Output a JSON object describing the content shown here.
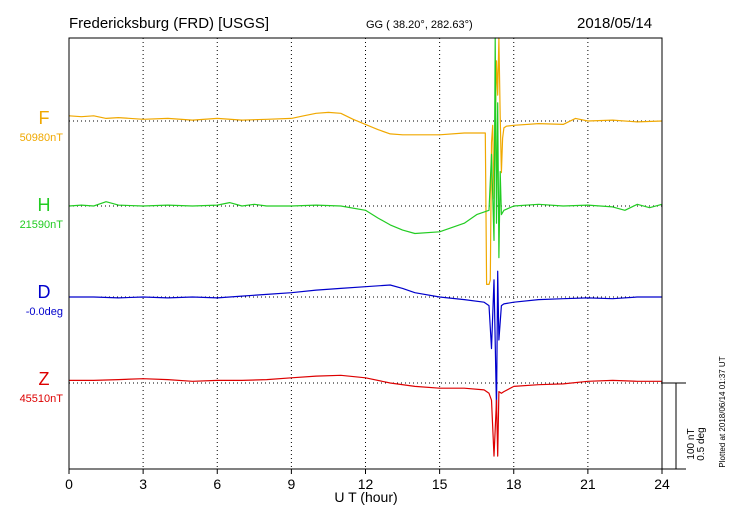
{
  "header": {
    "station": "Fredericksburg (FRD)  [USGS]",
    "coords": "GG ( 38.20°, 282.63°)",
    "date": "2018/05/14"
  },
  "footer": {
    "plotted": "Plotted at 2018/06/14 01:37 UT"
  },
  "chart_data": {
    "type": "line",
    "xlabel": "U T (hour)",
    "xlim": [
      0,
      24
    ],
    "xticks": [
      "0",
      "3",
      "6",
      "9",
      "12",
      "15",
      "18",
      "21",
      "24"
    ],
    "scale": {
      "field": "100 nT",
      "angle": "0.5 deg"
    },
    "series": [
      {
        "name": "F",
        "baseline": "50980nT",
        "color": "#f0a800",
        "x": [
          0,
          0.5,
          1,
          1.5,
          2,
          3,
          4,
          5,
          6,
          7,
          8,
          9,
          9.5,
          10,
          10.5,
          11,
          11.5,
          12,
          12.5,
          13,
          13.5,
          14,
          15,
          16,
          16.5,
          16.85,
          16.9,
          17.0,
          17.05,
          17.1,
          17.15,
          17.2,
          17.25,
          17.3,
          17.35,
          17.4,
          17.45,
          17.5,
          17.55,
          17.6,
          17.7,
          18,
          19,
          20,
          20.5,
          21,
          22,
          23,
          24
        ],
        "values": [
          6,
          5,
          6,
          3,
          4,
          2,
          3,
          1,
          3,
          1,
          2,
          3,
          6,
          9,
          10,
          9,
          2,
          -4,
          -10,
          -15,
          -16,
          -16,
          -16,
          -14,
          -14,
          -14,
          -190,
          -190,
          -185,
          -25,
          -5,
          -90,
          -5,
          70,
          30,
          100,
          5,
          -60,
          -20,
          -8,
          -6,
          -5,
          -3,
          -4,
          3,
          0,
          1,
          -1,
          0
        ]
      },
      {
        "name": "H",
        "baseline": "21590nT",
        "color": "#22cc22",
        "x": [
          0,
          0.5,
          1,
          1.5,
          2,
          3,
          4,
          5,
          6,
          6.5,
          7,
          7.5,
          8,
          9,
          10,
          11,
          12,
          12.5,
          13,
          13.5,
          14,
          15,
          16,
          16.5,
          17.0,
          17.1,
          17.2,
          17.25,
          17.3,
          17.35,
          17.4,
          17.45,
          17.5,
          17.6,
          18,
          19,
          20,
          21,
          22,
          22.5,
          23,
          23.5,
          24
        ],
        "values": [
          0,
          1,
          0,
          5,
          1,
          0,
          1,
          0,
          1,
          4,
          0,
          2,
          0,
          0,
          1,
          0,
          -5,
          -14,
          -22,
          -28,
          -32,
          -30,
          -20,
          -10,
          -5,
          60,
          -40,
          200,
          -20,
          120,
          -60,
          40,
          -10,
          -5,
          0,
          2,
          0,
          1,
          -1,
          -5,
          2,
          -2,
          2
        ]
      },
      {
        "name": "D",
        "baseline": "-0.0deg",
        "color": "#0000cc",
        "x": [
          0,
          1,
          2,
          3,
          4,
          5,
          6,
          7,
          8,
          9,
          10,
          11,
          12,
          13,
          13.5,
          14,
          15,
          16,
          16.8,
          17.0,
          17.1,
          17.2,
          17.3,
          17.35,
          17.4,
          17.5,
          17.6,
          18,
          19,
          20,
          21,
          22,
          23,
          24
        ],
        "values": [
          0,
          0,
          -1,
          0,
          -1,
          0,
          -1,
          1,
          3,
          5,
          8,
          10,
          12,
          14,
          10,
          5,
          0,
          -3,
          -6,
          -10,
          -60,
          20,
          -130,
          30,
          -50,
          -10,
          -8,
          -6,
          -3,
          -2,
          -1,
          -2,
          0,
          0
        ]
      },
      {
        "name": "Z",
        "baseline": "45510nT",
        "color": "#dd0000",
        "x": [
          0,
          1,
          2,
          3,
          4,
          5,
          6,
          7,
          8,
          9,
          10,
          11,
          12,
          13,
          14,
          15,
          16,
          16.8,
          17.0,
          17.1,
          17.2,
          17.3,
          17.35,
          17.4,
          17.5,
          17.6,
          18,
          19,
          20,
          21,
          22,
          23,
          24
        ],
        "values": [
          3,
          3,
          4,
          5,
          4,
          2,
          3,
          3,
          4,
          6,
          8,
          9,
          6,
          0,
          -4,
          -6,
          -6,
          -8,
          -12,
          -20,
          -85,
          -20,
          -85,
          -10,
          -12,
          -10,
          -4,
          -2,
          -1,
          2,
          3,
          2,
          2
        ]
      }
    ]
  }
}
